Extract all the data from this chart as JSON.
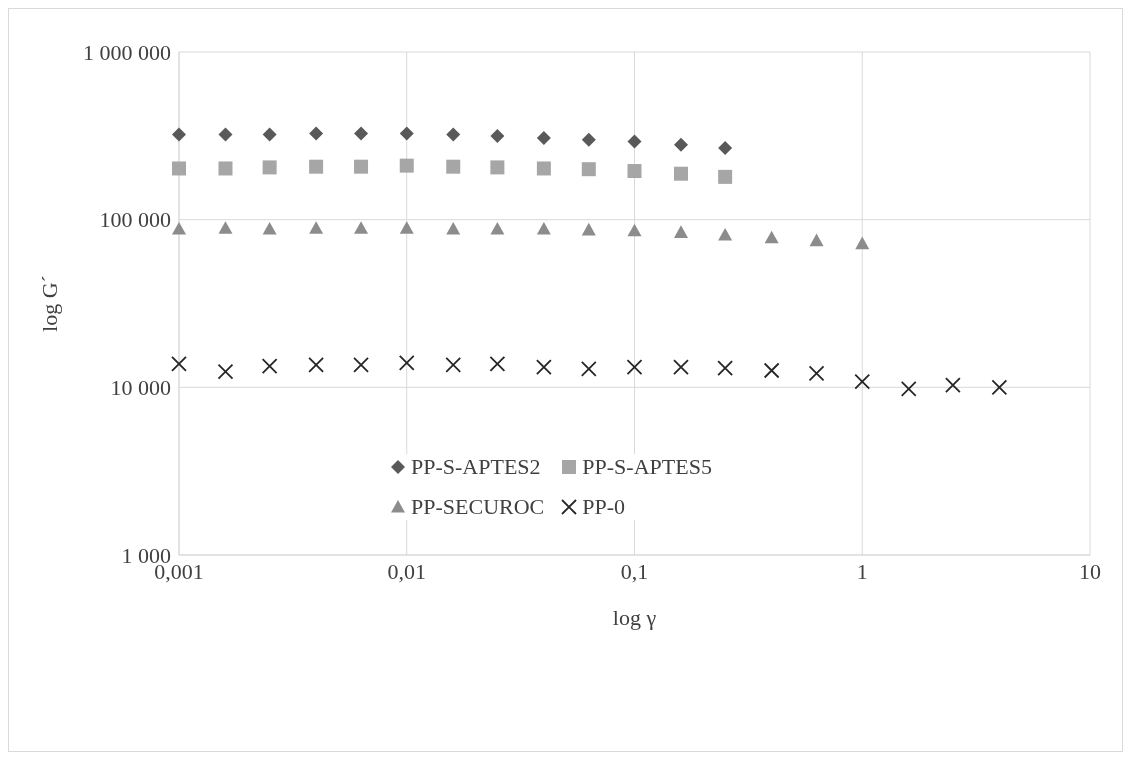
{
  "chart_data": {
    "type": "scatter",
    "xlabel": "log γ",
    "ylabel": "log G´",
    "log": "xy",
    "grid": true,
    "legend": "bottom",
    "xlim": [
      0.001,
      10
    ],
    "xticks": [
      {
        "value": 0.001,
        "label": "0,001"
      },
      {
        "value": 0.01,
        "label": "0,01"
      },
      {
        "value": 0.1,
        "label": "0,1"
      },
      1,
      10
    ],
    "ylim": [
      1000,
      1000000
    ],
    "yticks": [
      {
        "value": 1000,
        "label": "1 000"
      },
      {
        "value": 10000,
        "label": "10 000"
      },
      {
        "value": 100000,
        "label": "100 000"
      },
      {
        "value": 1000000,
        "label": "1 000 000"
      }
    ],
    "series": [
      {
        "name": "PP-S-APTES2",
        "color": "#595959",
        "marker": "diamond",
        "x": [
          0.001,
          0.0016,
          0.0025,
          0.004,
          0.0063,
          0.01,
          0.016,
          0.025,
          0.04,
          0.063,
          0.1,
          0.16,
          0.25
        ],
        "values": [
          322000,
          322000,
          322000,
          326000,
          326000,
          326000,
          322000,
          315000,
          307000,
          300000,
          293000,
          280000,
          268000
        ]
      },
      {
        "name": "PP-S-APTES5",
        "color": "#a6a6a6",
        "marker": "square",
        "x": [
          0.001,
          0.0016,
          0.0025,
          0.004,
          0.0063,
          0.01,
          0.016,
          0.025,
          0.04,
          0.063,
          0.1,
          0.16,
          0.25
        ],
        "values": [
          202000,
          202000,
          205000,
          207000,
          207000,
          210000,
          207000,
          205000,
          202000,
          200000,
          195000,
          188000,
          180000
        ]
      },
      {
        "name": "PP-SECUROC",
        "color": "#8c8c8c",
        "marker": "triangle",
        "x": [
          0.001,
          0.0016,
          0.0025,
          0.004,
          0.0063,
          0.01,
          0.016,
          0.025,
          0.04,
          0.063,
          0.1,
          0.16,
          0.25,
          0.4,
          0.63,
          1
        ],
        "values": [
          88000,
          89000,
          88000,
          89000,
          89000,
          89000,
          88000,
          88000,
          88000,
          87000,
          86000,
          84000,
          81000,
          78000,
          75000,
          72000
        ]
      },
      {
        "name": "PP-0",
        "color": "#262626",
        "marker": "cross",
        "x": [
          0.001,
          0.0016,
          0.0025,
          0.004,
          0.0063,
          0.01,
          0.016,
          0.025,
          0.04,
          0.063,
          0.1,
          0.16,
          0.25,
          0.4,
          0.63,
          1,
          1.6,
          2.5,
          4
        ],
        "values": [
          13800,
          12400,
          13400,
          13600,
          13600,
          14000,
          13600,
          13800,
          13200,
          12900,
          13200,
          13200,
          13000,
          12600,
          12100,
          10800,
          9800,
          10300,
          10000
        ]
      }
    ]
  }
}
